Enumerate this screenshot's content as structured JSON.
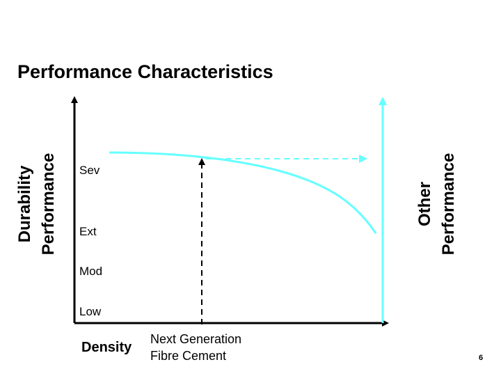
{
  "title": "Performance Characteristics",
  "y_axis_label_line1": "Durability",
  "y_axis_label_line2": "Performance",
  "right_axis_label_line1": "Other",
  "right_axis_label_line2": "Performance",
  "levels": [
    "Sev",
    "Ext",
    "Mod",
    "Low"
  ],
  "x_axis_label": "Density",
  "marker_label_line1": "Next Generation",
  "marker_label_line2": "Fibre Cement",
  "page_number": "6",
  "colors": {
    "curve": "#66ffff",
    "axis": "#000000",
    "marker": "#000000"
  }
}
